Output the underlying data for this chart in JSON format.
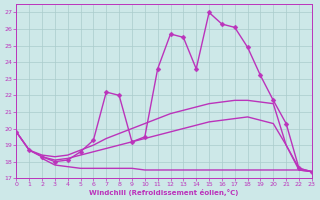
{
  "xlabel": "Windchill (Refroidissement éolien,°C)",
  "xlim": [
    0,
    23
  ],
  "ylim": [
    17,
    27.5
  ],
  "yticks": [
    17,
    18,
    19,
    20,
    21,
    22,
    23,
    24,
    25,
    26,
    27
  ],
  "xticks": [
    0,
    1,
    2,
    3,
    4,
    5,
    6,
    7,
    8,
    9,
    10,
    11,
    12,
    13,
    14,
    15,
    16,
    17,
    18,
    19,
    20,
    21,
    22,
    23
  ],
  "bg_color": "#cde8e8",
  "grid_color": "#aacccc",
  "line_color": "#bb33bb",
  "line_width": 1.0,
  "lines": [
    {
      "x": [
        0,
        1,
        2,
        3,
        4,
        5,
        6,
        7,
        8,
        9,
        10,
        11,
        12,
        13,
        14,
        15,
        16,
        17,
        18,
        19,
        20,
        21,
        22,
        23
      ],
      "y": [
        19.8,
        18.7,
        18.3,
        18.0,
        18.1,
        18.6,
        19.3,
        22.2,
        22.0,
        19.2,
        19.5,
        23.6,
        25.7,
        25.5,
        23.6,
        27.0,
        26.3,
        26.1,
        24.9,
        23.2,
        21.7,
        20.3,
        17.6,
        17.4
      ],
      "marker": "D",
      "marker_size": 2.5
    },
    {
      "x": [
        0,
        1,
        2,
        3,
        4,
        5,
        6,
        7,
        8,
        9,
        10,
        11,
        12,
        13,
        14,
        15,
        16,
        17,
        18,
        19,
        20,
        21,
        22,
        23
      ],
      "y": [
        19.8,
        18.7,
        18.4,
        18.3,
        18.4,
        18.7,
        19.0,
        19.4,
        19.7,
        20.0,
        20.3,
        20.6,
        20.9,
        21.1,
        21.3,
        21.5,
        21.6,
        21.7,
        21.7,
        21.6,
        21.5,
        19.0,
        17.6,
        17.4
      ],
      "marker": null,
      "marker_size": 0
    },
    {
      "x": [
        0,
        1,
        2,
        3,
        4,
        5,
        6,
        7,
        8,
        9,
        10,
        11,
        12,
        13,
        14,
        15,
        16,
        17,
        18,
        19,
        20,
        21,
        22,
        23
      ],
      "y": [
        19.8,
        18.7,
        18.3,
        18.1,
        18.2,
        18.4,
        18.6,
        18.8,
        19.0,
        19.2,
        19.4,
        19.6,
        19.8,
        20.0,
        20.2,
        20.4,
        20.5,
        20.6,
        20.7,
        20.5,
        20.3,
        19.0,
        17.5,
        17.4
      ],
      "marker": null,
      "marker_size": 0
    },
    {
      "x": [
        2,
        3,
        4,
        5,
        6,
        7,
        8,
        9,
        10,
        11,
        12,
        13,
        14,
        15,
        16,
        17,
        18,
        19,
        20,
        21,
        22,
        23
      ],
      "y": [
        18.2,
        17.8,
        17.7,
        17.6,
        17.6,
        17.6,
        17.6,
        17.6,
        17.5,
        17.5,
        17.5,
        17.5,
        17.5,
        17.5,
        17.5,
        17.5,
        17.5,
        17.5,
        17.5,
        17.5,
        17.5,
        17.4
      ],
      "marker": null,
      "marker_size": 0
    }
  ]
}
